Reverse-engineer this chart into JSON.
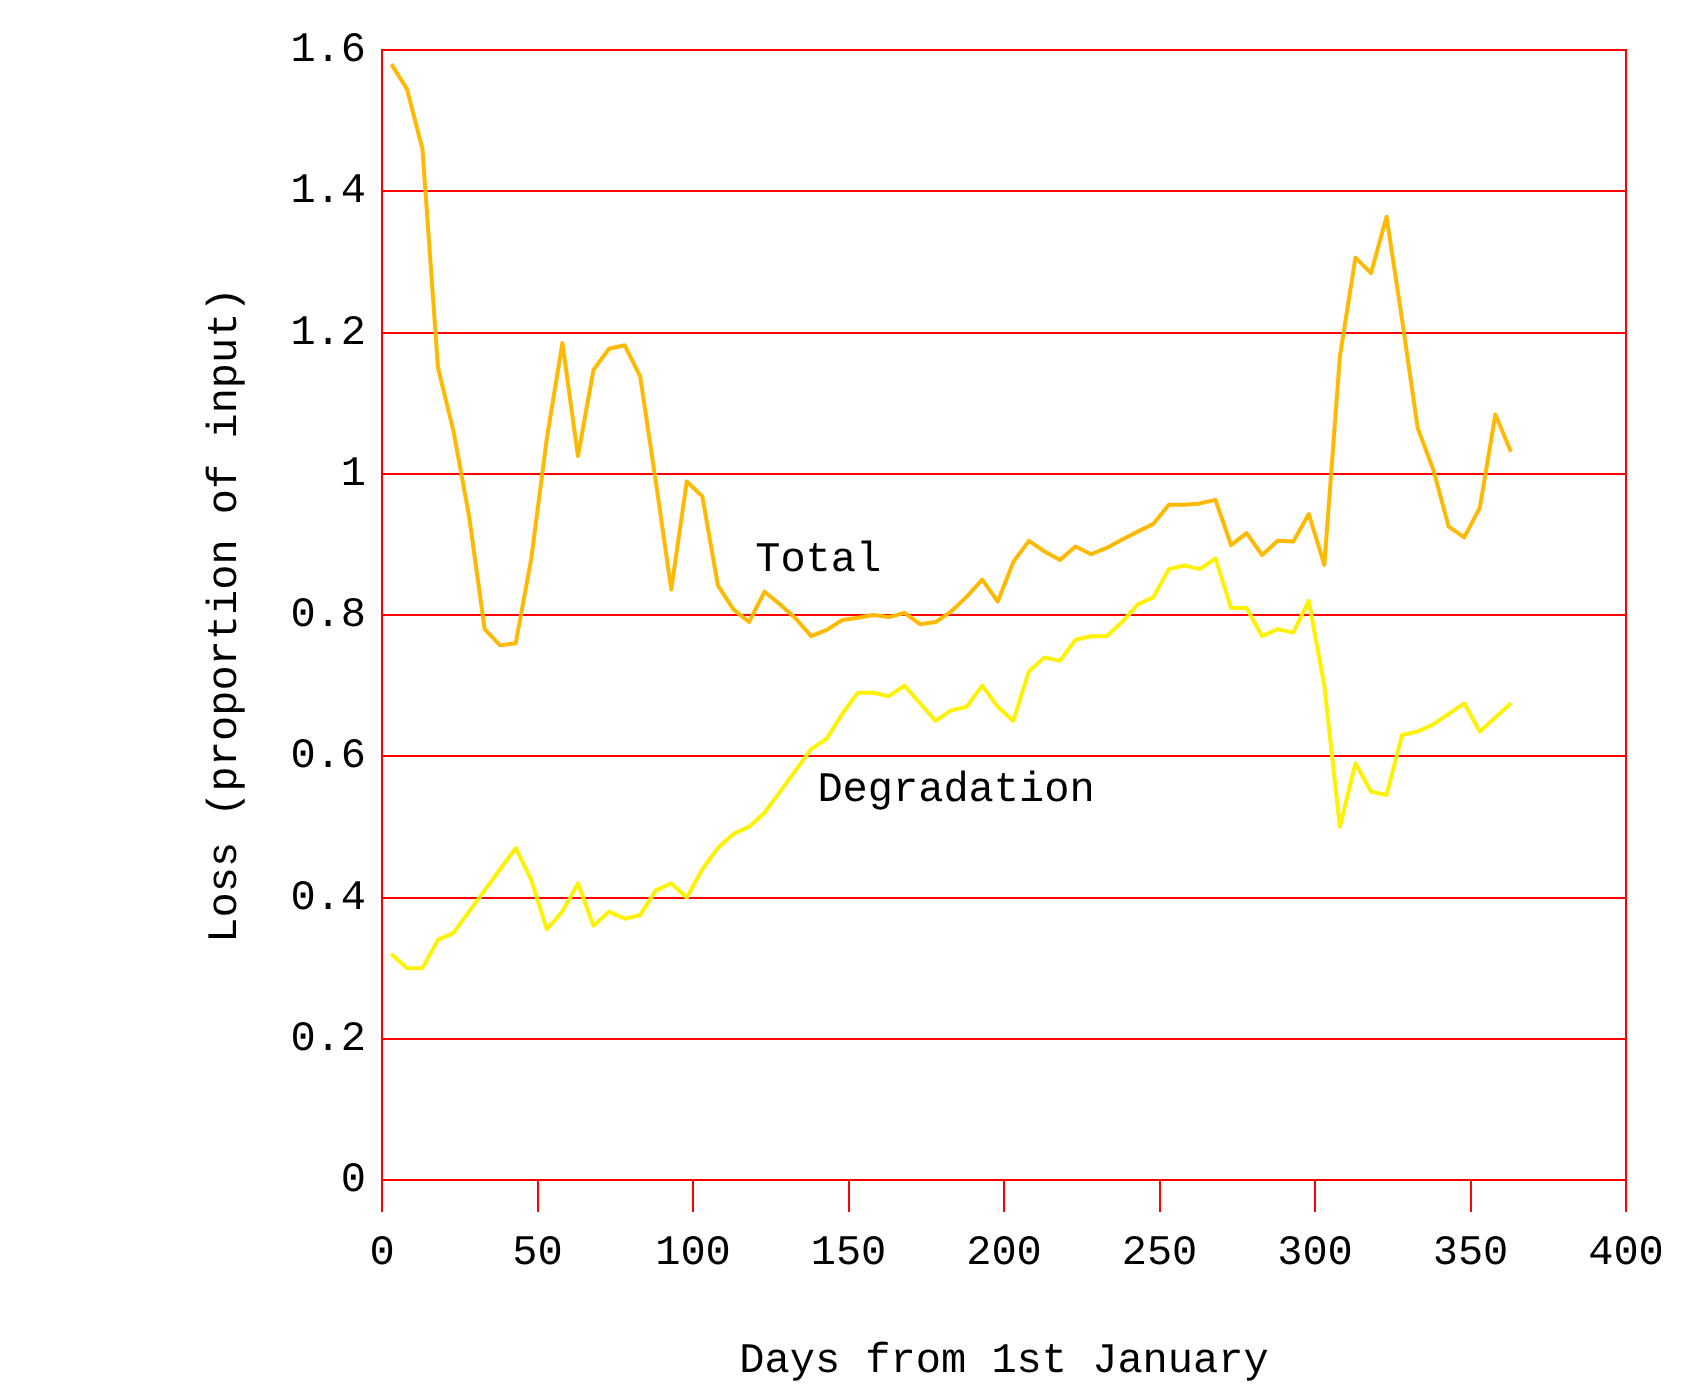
{
  "chart_data": {
    "type": "line",
    "xlabel": "Days from 1st January",
    "ylabel": "Loss (proportion of input)",
    "x": [
      3,
      8,
      13,
      18,
      23,
      28,
      33,
      38,
      43,
      48,
      53,
      58,
      63,
      68,
      73,
      78,
      83,
      88,
      93,
      98,
      103,
      108,
      113,
      118,
      123,
      128,
      133,
      138,
      143,
      148,
      153,
      158,
      163,
      168,
      173,
      178,
      183,
      188,
      193,
      198,
      203,
      208,
      213,
      218,
      223,
      228,
      233,
      238,
      243,
      248,
      253,
      258,
      263,
      268,
      273,
      278,
      283,
      288,
      293,
      298,
      303,
      308,
      313,
      318,
      323,
      328,
      333,
      338,
      343,
      348,
      353,
      358,
      363
    ],
    "series": [
      {
        "name": "Total",
        "color": "#ffb900",
        "values": [
          1.58,
          1.545,
          1.46,
          1.15,
          1.06,
          0.94,
          0.78,
          0.757,
          0.76,
          0.88,
          1.05,
          1.185,
          1.025,
          1.147,
          1.177,
          1.182,
          1.138,
          0.99,
          0.836,
          0.989,
          0.968,
          0.842,
          0.808,
          0.79,
          0.833,
          0.815,
          0.795,
          0.77,
          0.779,
          0.793,
          0.796,
          0.8,
          0.797,
          0.803,
          0.787,
          0.79,
          0.805,
          0.826,
          0.85,
          0.819,
          0.875,
          0.905,
          0.89,
          0.878,
          0.897,
          0.886,
          0.895,
          0.907,
          0.918,
          0.929,
          0.956,
          0.956,
          0.958,
          0.963,
          0.899,
          0.916,
          0.885,
          0.905,
          0.904,
          0.943,
          0.871,
          1.166,
          1.306,
          1.284,
          1.364,
          1.218,
          1.065,
          1.006,
          0.925,
          0.91,
          0.952,
          1.084,
          1.031
        ]
      },
      {
        "name": "Degradation",
        "color": "#fff200",
        "values": [
          0.32,
          0.3,
          0.3,
          0.34,
          0.35,
          0.38,
          0.41,
          0.44,
          0.47,
          0.425,
          0.355,
          0.38,
          0.42,
          0.36,
          0.38,
          0.37,
          0.375,
          0.41,
          0.42,
          0.4,
          0.44,
          0.47,
          0.49,
          0.5,
          0.52,
          0.55,
          0.58,
          0.61,
          0.625,
          0.66,
          0.69,
          0.69,
          0.685,
          0.7,
          0.675,
          0.65,
          0.665,
          0.67,
          0.7,
          0.67,
          0.65,
          0.72,
          0.74,
          0.735,
          0.765,
          0.77,
          0.77,
          0.79,
          0.815,
          0.825,
          0.865,
          0.87,
          0.865,
          0.88,
          0.81,
          0.81,
          0.77,
          0.78,
          0.775,
          0.82,
          0.7,
          0.5,
          0.59,
          0.55,
          0.545,
          0.63,
          0.635,
          0.645,
          0.66,
          0.675,
          0.635,
          0.655,
          0.675
        ]
      }
    ],
    "xlim": [
      0,
      400
    ],
    "xticks": [
      0,
      50,
      100,
      150,
      200,
      250,
      300,
      350,
      400
    ],
    "ylim": [
      0,
      1.6
    ],
    "yticks": [
      0,
      0.2,
      0.4,
      0.6,
      0.8,
      1,
      1.2,
      1.4,
      1.6
    ],
    "grid": "y"
  }
}
